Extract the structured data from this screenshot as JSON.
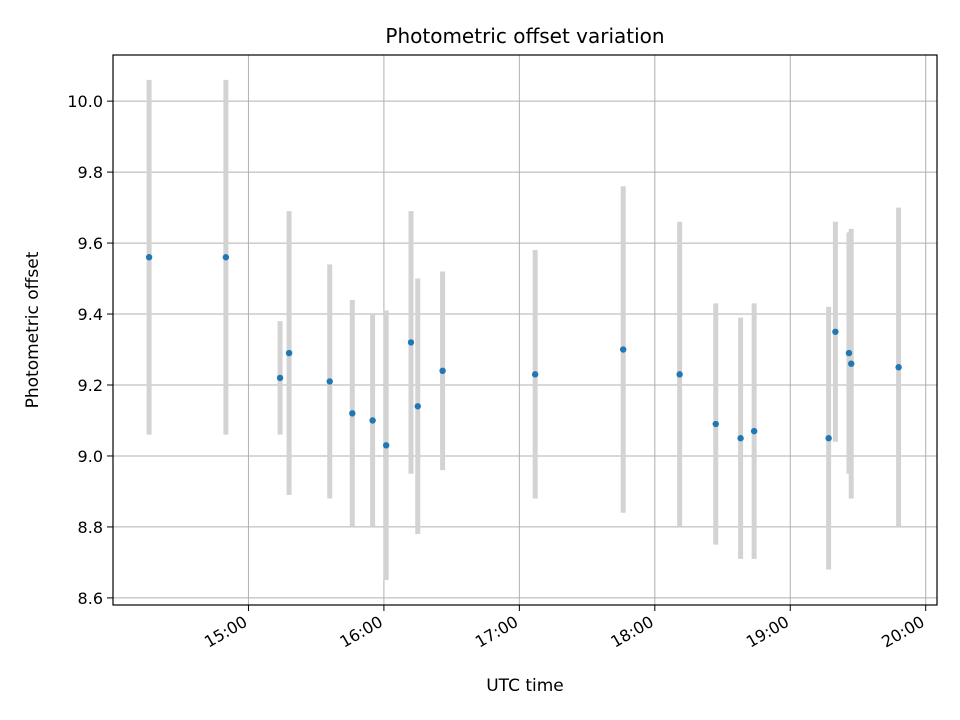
{
  "chart_data": {
    "type": "scatter",
    "title": "Photometric offset variation",
    "xlabel": "UTC time",
    "ylabel": "Photometric offset",
    "x_axis_type": "time",
    "xlim": [
      "14:00",
      "20:05"
    ],
    "ylim": [
      8.58,
      10.13
    ],
    "x_ticks": [
      "15:00",
      "16:00",
      "17:00",
      "18:00",
      "19:00",
      "20:00"
    ],
    "y_ticks": [
      "8.6",
      "8.8",
      "9.0",
      "9.2",
      "9.4",
      "9.6",
      "9.8",
      "10.0"
    ],
    "grid": true,
    "marker_color": "#1f77b4",
    "errorbar_color": "#d3d3d3",
    "points": [
      {
        "x": "14:16",
        "y": 9.56,
        "yerr": 0.5
      },
      {
        "x": "14:50",
        "y": 9.56,
        "yerr": 0.5
      },
      {
        "x": "15:14",
        "y": 9.22,
        "yerr": 0.16
      },
      {
        "x": "15:18",
        "y": 9.29,
        "yerr": 0.4
      },
      {
        "x": "15:36",
        "y": 9.21,
        "yerr": 0.33
      },
      {
        "x": "15:46",
        "y": 9.12,
        "yerr": 0.32
      },
      {
        "x": "15:55",
        "y": 9.1,
        "yerr": 0.3
      },
      {
        "x": "16:01",
        "y": 9.03,
        "yerr": 0.38
      },
      {
        "x": "16:12",
        "y": 9.32,
        "yerr": 0.37
      },
      {
        "x": "16:15",
        "y": 9.14,
        "yerr": 0.36
      },
      {
        "x": "16:26",
        "y": 9.24,
        "yerr": 0.28
      },
      {
        "x": "17:07",
        "y": 9.23,
        "yerr": 0.35
      },
      {
        "x": "17:46",
        "y": 9.3,
        "yerr": 0.46
      },
      {
        "x": "18:11",
        "y": 9.23,
        "yerr": 0.43
      },
      {
        "x": "18:27",
        "y": 9.09,
        "yerr": 0.34
      },
      {
        "x": "18:38",
        "y": 9.05,
        "yerr": 0.34
      },
      {
        "x": "18:44",
        "y": 9.07,
        "yerr": 0.36
      },
      {
        "x": "19:17",
        "y": 9.05,
        "yerr": 0.37
      },
      {
        "x": "19:20",
        "y": 9.35,
        "yerr": 0.31
      },
      {
        "x": "19:26",
        "y": 9.29,
        "yerr": 0.34
      },
      {
        "x": "19:27",
        "y": 9.26,
        "yerr": 0.38
      },
      {
        "x": "19:48",
        "y": 9.25,
        "yerr": 0.45
      }
    ]
  }
}
